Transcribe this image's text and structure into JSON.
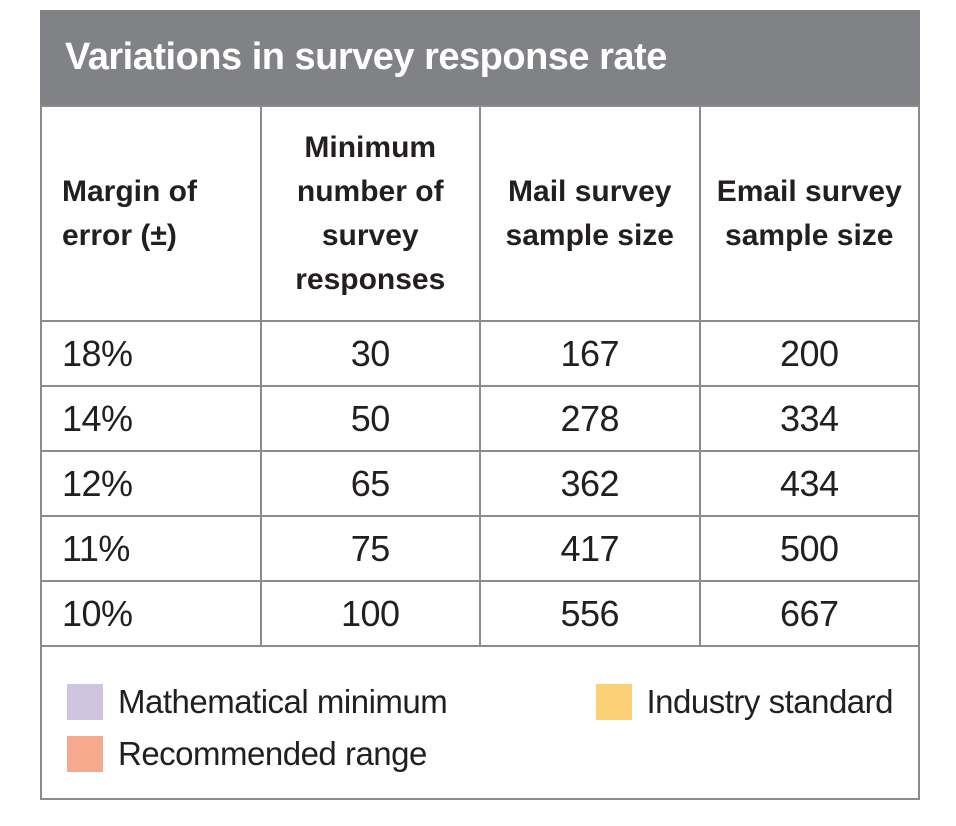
{
  "chart_data": {
    "type": "table",
    "title": "Variations in survey response rate",
    "columns": [
      "Margin of error (±)",
      "Minimum number of survey responses",
      "Mail survey sample size",
      "Email survey sample size"
    ],
    "rows": [
      {
        "margin_of_error": "18%",
        "min_responses": "30",
        "mail_sample": "167",
        "email_sample": "200",
        "category": "mathematical-minimum"
      },
      {
        "margin_of_error": "14%",
        "min_responses": "50",
        "mail_sample": "278",
        "email_sample": "334",
        "category": "industry-standard"
      },
      {
        "margin_of_error": "12%",
        "min_responses": "65",
        "mail_sample": "362",
        "email_sample": "434",
        "category": "recommended-range"
      },
      {
        "margin_of_error": "11%",
        "min_responses": "75",
        "mail_sample": "417",
        "email_sample": "500",
        "category": "recommended-range"
      },
      {
        "margin_of_error": "10%",
        "min_responses": "100",
        "mail_sample": "556",
        "email_sample": "667",
        "category": "recommended-range"
      }
    ],
    "legend_items": [
      {
        "label": "Mathematical minimum",
        "category": "mathematical-minimum"
      },
      {
        "label": "Industry standard",
        "category": "industry-standard"
      },
      {
        "label": "Recommended range",
        "category": "recommended-range"
      }
    ],
    "legend_position": "bottom"
  },
  "colors": {
    "title_bar_bg": "#808285",
    "title_text": "#ffffff",
    "grid_line": "#8a8c8e",
    "text": "#231f20",
    "row_mathematical_minimum": "#ab97c4",
    "row_industry_standard": "#fcdda3",
    "row_recommended_range": "#f7aa8f",
    "swatch_mathematical_minimum": "#d0c5e1",
    "swatch_industry_standard": "#fbcf76",
    "swatch_recommended_range": "#f5a98d"
  }
}
